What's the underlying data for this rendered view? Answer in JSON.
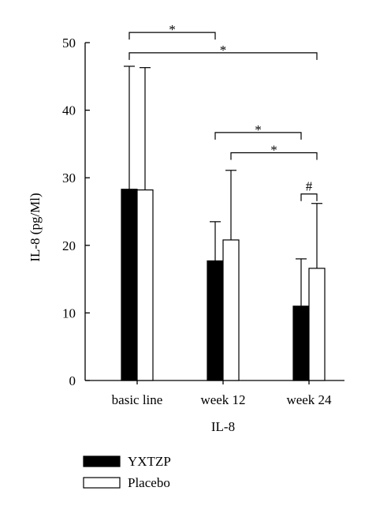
{
  "chart_data": {
    "type": "bar",
    "title": "",
    "xlabel": "IL-8",
    "ylabel": "IL-8 (pg/Ml)",
    "ylim": [
      0,
      50
    ],
    "yticks": [
      "0",
      "10",
      "20",
      "30",
      "40",
      "50"
    ],
    "categories": [
      "basic line",
      "week 12",
      "week 24"
    ],
    "series": [
      {
        "name": "YXTZP",
        "color": "#000000",
        "values": [
          28.3,
          17.7,
          11.0
        ],
        "errors": [
          18.2,
          5.8,
          7.0
        ]
      },
      {
        "name": "Placebo",
        "color": "#ffffff",
        "values": [
          28.2,
          20.8,
          16.6
        ],
        "errors": [
          18.1,
          10.3,
          9.6
        ]
      }
    ],
    "grid": false,
    "legend_position": "bottom-left",
    "annotations": [
      {
        "symbol": "*",
        "from": [
          "basic line",
          "YXTZP"
        ],
        "to": [
          "week 12",
          "YXTZP"
        ],
        "level": 51.5
      },
      {
        "symbol": "*",
        "from": [
          "basic line",
          "YXTZP"
        ],
        "to": [
          "week 24",
          "Placebo"
        ],
        "level": 48.5
      },
      {
        "symbol": "*",
        "from": [
          "week 12",
          "YXTZP"
        ],
        "to": [
          "week 24",
          "YXTZP"
        ],
        "level": 36.7
      },
      {
        "symbol": "*",
        "from": [
          "week 12",
          "Placebo"
        ],
        "to": [
          "week 24",
          "Placebo"
        ],
        "level": 33.7
      },
      {
        "symbol": "#",
        "from": [
          "week 24",
          "YXTZP"
        ],
        "to": [
          "week 24",
          "Placebo"
        ],
        "level": 27.6
      }
    ]
  }
}
